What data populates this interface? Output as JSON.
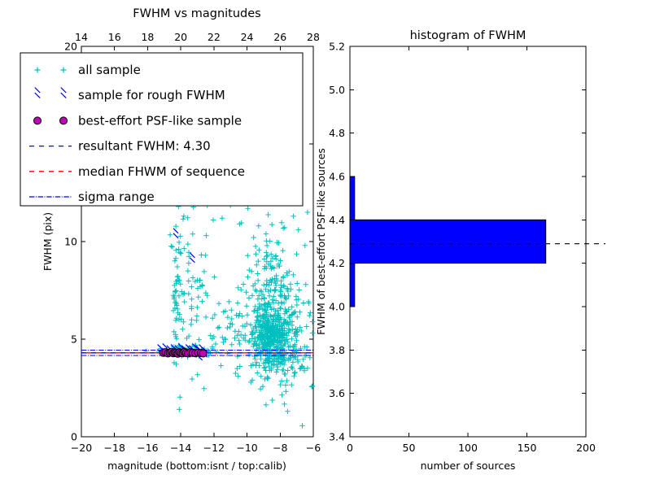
{
  "chart_data": [
    {
      "type": "scatter",
      "title": "FWHM vs magnitudes",
      "xlabel": "magnitude (bottom:isnt / top:calib)",
      "ylabel": "FWHM (pix)",
      "xlim": [
        -20,
        -6
      ],
      "ylim": [
        0,
        20
      ],
      "x_ticks_bottom": {
        "values": [
          -20,
          -18,
          -16,
          -14,
          -12,
          -10,
          -8,
          -6
        ],
        "labels": [
          "−20",
          "−18",
          "−16",
          "−14",
          "−12",
          "−10",
          "−8",
          "−6"
        ]
      },
      "x_ticks_top": {
        "values": [
          -20,
          -18,
          -16,
          -14,
          -12,
          -10,
          -8,
          -6
        ],
        "labels": [
          "14",
          "16",
          "18",
          "20",
          "22",
          "24",
          "26",
          "28"
        ]
      },
      "y_ticks": {
        "values": [
          0,
          5,
          10,
          15,
          20
        ],
        "labels": [
          "0",
          "5",
          "10",
          "15",
          "20"
        ]
      },
      "legend": {
        "items": [
          {
            "label": "all sample",
            "marker": "plus",
            "color": "#00bfbf"
          },
          {
            "label": "sample for rough FWHM",
            "marker": "x",
            "color": "#0000ff"
          },
          {
            "label": "best-effort PSF-like sample",
            "marker": "circle",
            "color": "#bf00bf",
            "edge_color": "#000000"
          },
          {
            "label": "resultant FWHM: 4.30",
            "marker": "dashed-line",
            "color": "#0000ff"
          },
          {
            "label": "median FHWM of sequence",
            "marker": "dashed-line",
            "color": "#ff0000"
          },
          {
            "label": "sigma range",
            "marker": "dashdot-line",
            "color": "#0000ff"
          }
        ]
      },
      "series": {
        "all_sample": {
          "label": "all sample",
          "marker": "plus",
          "color": "#00bfbf",
          "seed": 20240613,
          "clusters": [
            {
              "n": 400,
              "cx": -8.55,
              "cy": 5.1,
              "sx": 0.55,
              "sy": 0.85
            },
            {
              "n": 180,
              "cx": -8.35,
              "cy": 5.9,
              "sx": 1.05,
              "sy": 1.7
            },
            {
              "n": 90,
              "cx": -8.7,
              "cy": 8.2,
              "sx": 0.6,
              "sy": 1.7
            },
            {
              "n": 60,
              "cx": -7.0,
              "cy": 5.0,
              "sx": 0.55,
              "sy": 1.5
            },
            {
              "n": 45,
              "cx": -14.25,
              "cy": 7.0,
              "sx": 0.12,
              "sy": 2.0
            },
            {
              "n": 60,
              "cx": -13.3,
              "cy": 6.6,
              "sx": 0.5,
              "sy": 1.9
            },
            {
              "n": 45,
              "cx": -11.2,
              "cy": 5.4,
              "sx": 0.8,
              "sy": 1.1
            },
            {
              "n": 80,
              "cx": -13.6,
              "cy": 4.4,
              "sx": 0.9,
              "sy": 0.12
            },
            {
              "n": 50,
              "cx": -12.6,
              "cy": 14.0,
              "sx": 1.5,
              "sy": 2.4
            }
          ],
          "extra_points": [
            [
              -6.35,
              11.5
            ],
            [
              -9.95,
              11.7
            ],
            [
              -11.5,
              11.2
            ],
            [
              -10.45,
              10.9
            ],
            [
              -6.5,
              9.8
            ],
            [
              -6.9,
              10.6
            ],
            [
              -12.4,
              11.85
            ],
            [
              -6.05,
              2.6
            ],
            [
              -7.55,
              1.3
            ],
            [
              -6.2,
              4.05
            ],
            [
              -9.3,
              10.8
            ],
            [
              -7.2,
              11.3
            ]
          ]
        },
        "rough_fwhm": {
          "label": "sample for rough FWHM",
          "marker": "x",
          "color": "#0000ff",
          "points": [
            [
              -15.25,
              4.35
            ],
            [
              -14.95,
              4.4
            ],
            [
              -14.7,
              4.3
            ],
            [
              -14.45,
              4.35
            ],
            [
              -14.2,
              4.3
            ],
            [
              -14.0,
              4.4
            ],
            [
              -13.8,
              4.3
            ],
            [
              -13.55,
              4.35
            ],
            [
              -13.35,
              4.3
            ],
            [
              -13.15,
              4.4
            ],
            [
              -12.95,
              4.3
            ],
            [
              -12.75,
              4.35
            ],
            [
              -12.55,
              4.2
            ],
            [
              -14.3,
              10.3
            ],
            [
              -13.3,
              9.05
            ],
            [
              -13.65,
              12.25
            ],
            [
              -12.85,
              4.05
            ]
          ]
        },
        "psf_like": {
          "label": "best-effort PSF-like sample",
          "marker": "circle",
          "color": "#bf00bf",
          "edge_color": "#000000",
          "points": [
            [
              -15.05,
              4.3
            ],
            [
              -14.92,
              4.33
            ],
            [
              -14.78,
              4.27
            ],
            [
              -14.66,
              4.31
            ],
            [
              -14.55,
              4.35
            ],
            [
              -14.45,
              4.28
            ],
            [
              -14.36,
              4.32
            ],
            [
              -14.27,
              4.3
            ],
            [
              -14.18,
              4.26
            ],
            [
              -14.08,
              4.33
            ],
            [
              -13.98,
              4.3
            ],
            [
              -13.88,
              4.28
            ],
            [
              -13.78,
              4.34
            ],
            [
              -13.68,
              4.3
            ],
            [
              -13.55,
              4.27
            ],
            [
              -13.42,
              4.32
            ],
            [
              -13.28,
              4.3
            ],
            [
              -13.12,
              4.28
            ],
            [
              -12.95,
              4.31
            ],
            [
              -12.78,
              4.29
            ],
            [
              -12.65,
              4.27
            ]
          ]
        }
      },
      "lines": [
        {
          "name": "resultant FWHM",
          "value": 4.3,
          "y": 4.3,
          "style": "dashed",
          "color": "#0000ff",
          "dash_offset": 0
        },
        {
          "name": "median FHWM of sequence",
          "y": 4.3,
          "style": "dashed",
          "color": "#ff0000",
          "dash_offset": 6
        },
        {
          "name": "sigma range upper",
          "y": 4.44,
          "style": "dashdot",
          "color": "#0000ff",
          "dash_offset": 0
        },
        {
          "name": "sigma range lower",
          "y": 4.16,
          "style": "dashdot",
          "color": "#0000ff",
          "dash_offset": 0
        }
      ]
    },
    {
      "type": "bar",
      "orientation": "horizontal",
      "title": "histogram of FWHM",
      "xlabel": "number of sources",
      "ylabel": "FWHM of best-effort PSF-like sources",
      "xlim": [
        0,
        200
      ],
      "ylim": [
        3.4,
        5.2
      ],
      "x_ticks": {
        "values": [
          0,
          50,
          100,
          150,
          200
        ],
        "labels": [
          "0",
          "50",
          "100",
          "150",
          "200"
        ]
      },
      "y_ticks": {
        "values": [
          3.4,
          3.6,
          3.8,
          4.0,
          4.2,
          4.4,
          4.6,
          4.8,
          5.0,
          5.2
        ],
        "labels": [
          "3.4",
          "3.6",
          "3.8",
          "4.0",
          "4.2",
          "4.4",
          "4.6",
          "4.8",
          "5.0",
          "5.2"
        ]
      },
      "bar_color": "#0000ff",
      "bar_edge_color": "#000000",
      "bins": [
        {
          "from": 3.4,
          "to": 3.6,
          "count": 0
        },
        {
          "from": 3.6,
          "to": 3.8,
          "count": 0
        },
        {
          "from": 3.8,
          "to": 4.0,
          "count": 0
        },
        {
          "from": 4.0,
          "to": 4.2,
          "count": 4
        },
        {
          "from": 4.2,
          "to": 4.4,
          "count": 166
        },
        {
          "from": 4.4,
          "to": 4.6,
          "count": 4
        },
        {
          "from": 4.6,
          "to": 4.8,
          "count": 0
        },
        {
          "from": 4.8,
          "to": 5.0,
          "count": 0
        },
        {
          "from": 5.0,
          "to": 5.2,
          "count": 0
        }
      ],
      "median_line": {
        "y": 4.29,
        "style": "dashed",
        "color": "#000000"
      }
    }
  ]
}
